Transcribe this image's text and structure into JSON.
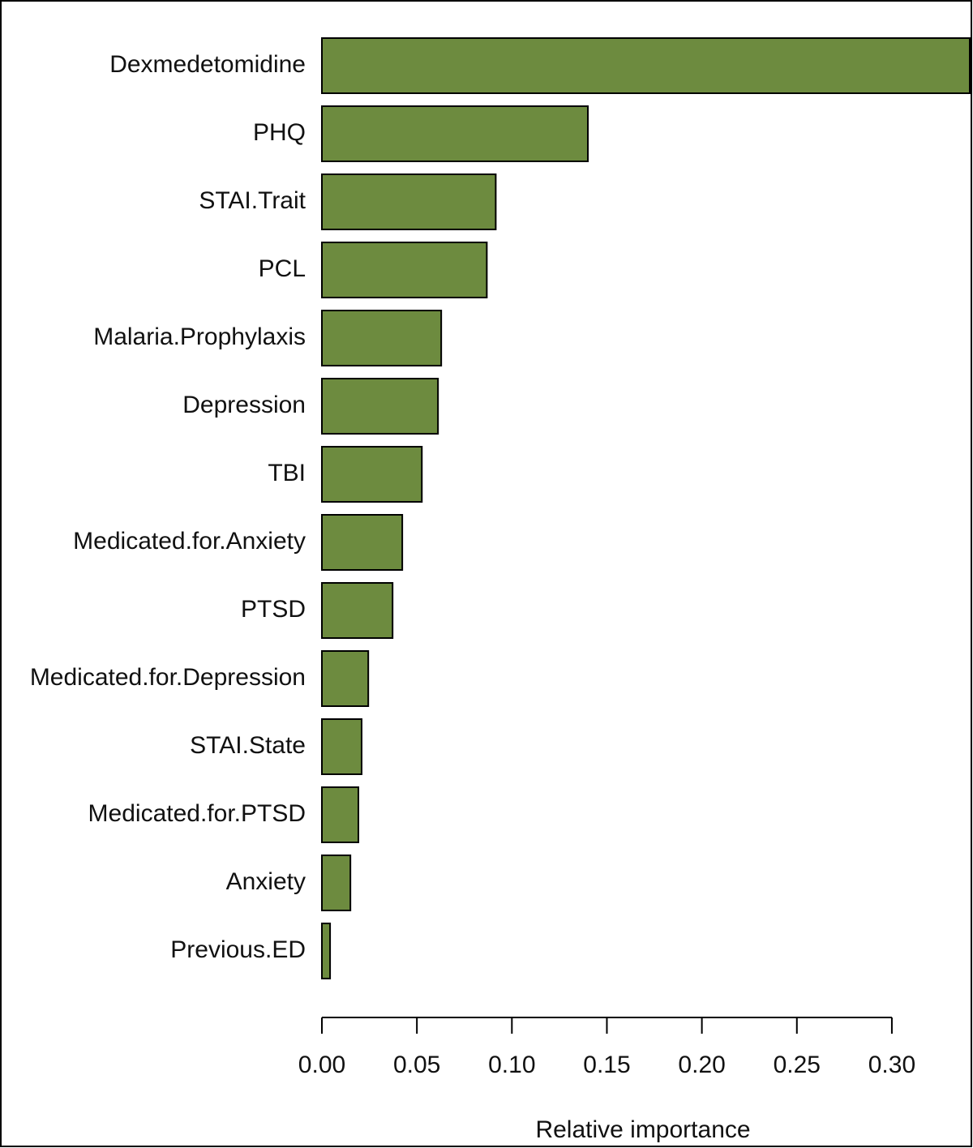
{
  "chart_data": {
    "type": "barh",
    "xlabel": "Relative importance",
    "categories": [
      "Dexmedetomidine",
      "PHQ",
      "STAI.Trait",
      "PCL",
      "Malaria.Prophylaxis",
      "Depression",
      "TBI",
      "Medicated.for.Anxiety",
      "PTSD",
      "Medicated.for.Depression",
      "STAI.State",
      "Medicated.for.PTSD",
      "Anxiety",
      "Previous.ED"
    ],
    "values": [
      0.341,
      0.14,
      0.0915,
      0.0868,
      0.0628,
      0.0611,
      0.0526,
      0.0423,
      0.0372,
      0.0244,
      0.0209,
      0.0192,
      0.015,
      0.0043
    ],
    "color": "#6d8b3f",
    "xlim": [
      0,
      0.341
    ],
    "xticks": [
      {
        "value": 0,
        "label": "0.00"
      },
      {
        "value": 0.05,
        "label": "0.05"
      },
      {
        "value": 0.1,
        "label": "0.10"
      },
      {
        "value": 0.15,
        "label": "0.15"
      },
      {
        "value": 0.2,
        "label": "0.20"
      },
      {
        "value": 0.25,
        "label": "0.25"
      },
      {
        "value": 0.3,
        "label": "0.30"
      }
    ]
  }
}
